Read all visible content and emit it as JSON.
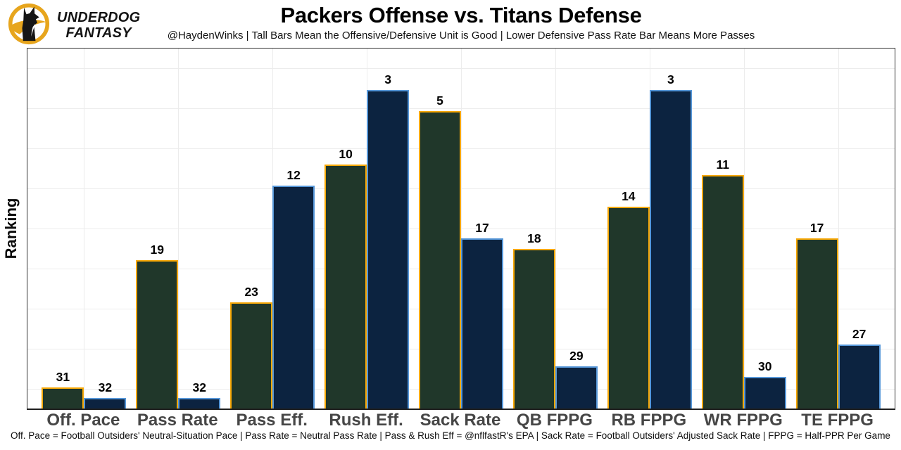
{
  "brand": {
    "icon": "underdog-dog-logo-icon",
    "line1": "UNDERDOG",
    "line2": "FANTASY",
    "gold": "#E7A51D",
    "black": "#141414"
  },
  "header": {
    "title": "Packers Offense vs. Titans Defense",
    "subtitle": "@HaydenWinks | Tall Bars Mean the Offensive/Defensive Unit is Good | Lower Defensive Pass Rate Bar Means More Passes"
  },
  "footnote": "Off. Pace = Football Outsiders' Neutral-Situation Pace | Pass Rate = Neutral Pass Rate | Pass & Rush Eff = @nflfastR's EPA | Sack Rate = Football Outsiders' Adjusted Sack Rate | FPPG = Half-PPR Per Game",
  "chart_data": {
    "type": "bar",
    "title": "Packers Offense vs. Titans Defense",
    "ylabel": "Ranking",
    "xlabel": "",
    "categories": [
      "Off. Pace",
      "Pass Rate",
      "Pass Eff.",
      "Rush Eff.",
      "Sack Rate",
      "QB FPPG",
      "RB FPPG",
      "WR FPPG",
      "TE FPPG"
    ],
    "series": [
      {
        "name": "Packers Offense",
        "values": [
          31,
          19,
          23,
          10,
          5,
          18,
          14,
          11,
          17
        ],
        "fill": "#20372A",
        "edge": "#F7A807"
      },
      {
        "name": "Titans Defense",
        "values": [
          32,
          32,
          12,
          3,
          17,
          29,
          3,
          30,
          27
        ],
        "fill": "#0C2340",
        "edge": "#5596D8"
      }
    ],
    "value_labels_shown": true,
    "ranking_note": "values are NFL ranks (1 = best of 32); bars are drawn with height proportional to 33 - rank, so taller bar = better unit",
    "ylim": [
      0,
      33.9
    ],
    "grid": true,
    "legend": "none",
    "grid_color": "#ECECEC",
    "axis_color": "#2E2E2E",
    "tick_label_color": "#464646"
  }
}
